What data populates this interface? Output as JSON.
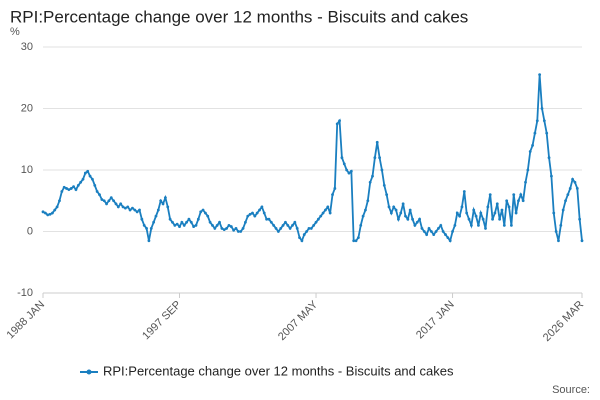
{
  "chart_data": {
    "type": "line",
    "title": "RPI:Percentage change over 12 months - Biscuits and cakes",
    "y_label": "%",
    "source": "Source:",
    "categories": [
      "1988 JAN",
      null,
      null,
      null,
      null,
      null,
      null,
      null,
      null,
      null,
      null,
      null,
      null,
      null,
      null,
      null,
      null,
      null,
      null,
      null,
      null,
      null,
      null,
      null,
      null,
      null,
      null,
      null,
      null,
      null,
      null,
      null,
      null,
      null,
      null,
      null,
      null,
      null,
      null,
      null,
      null,
      null,
      null,
      null,
      null,
      null,
      null,
      null,
      null,
      null,
      null,
      null,
      null,
      null,
      null,
      null,
      null,
      null,
      "1997 SEP",
      null,
      null,
      null,
      null,
      null,
      null,
      null,
      null,
      null,
      null,
      null,
      null,
      null,
      null,
      null,
      null,
      null,
      null,
      null,
      null,
      null,
      null,
      null,
      null,
      null,
      null,
      null,
      null,
      null,
      null,
      null,
      null,
      null,
      null,
      null,
      null,
      null,
      null,
      null,
      null,
      null,
      null,
      null,
      null,
      null,
      null,
      null,
      null,
      null,
      null,
      null,
      null,
      null,
      null,
      null,
      null,
      null,
      "2007 MAY",
      null,
      null,
      null,
      null,
      null,
      null,
      null,
      null,
      null,
      null,
      null,
      null,
      null,
      null,
      null,
      null,
      null,
      null,
      null,
      null,
      null,
      null,
      null,
      null,
      null,
      null,
      null,
      null,
      null,
      null,
      null,
      null,
      null,
      null,
      null,
      null,
      null,
      null,
      null,
      null,
      null,
      null,
      null,
      null,
      null,
      null,
      null,
      null,
      null,
      null,
      null,
      null,
      null,
      null,
      null,
      null,
      null,
      "2017 JAN",
      null,
      null,
      null,
      null,
      null,
      null,
      null,
      null,
      null,
      null,
      null,
      null,
      null,
      null,
      null,
      null,
      null,
      null,
      null,
      null,
      null,
      null,
      null,
      null,
      null,
      null,
      null,
      null,
      null,
      null,
      null,
      null,
      null,
      null,
      null,
      null,
      null,
      null,
      null,
      null,
      null,
      null,
      null,
      null,
      null,
      null,
      null,
      null,
      null,
      null,
      null,
      null,
      null,
      null,
      "2026 MAR"
    ],
    "series": [
      {
        "name": "RPI:Percentage change over 12 months - Biscuits and cakes",
        "color": "#1a7fc0",
        "values": [
          3.2,
          3,
          2.7,
          2.8,
          3,
          3.5,
          4,
          5,
          6.5,
          7.2,
          7,
          6.8,
          7,
          7.3,
          6.8,
          7.5,
          8,
          8.5,
          9.5,
          9.8,
          9,
          8.5,
          7.5,
          6.5,
          6,
          5.2,
          5,
          4.5,
          5,
          5.5,
          5,
          4.5,
          4,
          4.5,
          4,
          3.8,
          4,
          3.5,
          3.8,
          3.5,
          3.2,
          3.5,
          2,
          1,
          0.5,
          -1.5,
          0.5,
          1.5,
          2.5,
          3.5,
          5,
          4.5,
          5.5,
          4,
          2,
          1.5,
          1,
          1.2,
          0.8,
          1.5,
          1,
          1.5,
          2,
          1.5,
          0.8,
          1,
          2,
          3.2,
          3.5,
          3,
          2.5,
          1.5,
          1,
          0.5,
          1,
          1.5,
          0.5,
          0.3,
          0.5,
          1,
          0.8,
          0.2,
          0.5,
          0,
          0,
          0.5,
          1.5,
          2.5,
          2.8,
          3,
          2.5,
          3,
          3.5,
          4,
          3,
          2,
          2,
          1.5,
          1,
          0.5,
          0,
          0.5,
          1,
          1.5,
          1,
          0.5,
          1,
          1.5,
          0.5,
          -1,
          -1.5,
          -0.5,
          0,
          0.5,
          0.5,
          1,
          1.5,
          2,
          2.5,
          3,
          3.5,
          4,
          3,
          6,
          7,
          17.5,
          18,
          12,
          11,
          10,
          9.5,
          9.8,
          -1.5,
          -1.5,
          -1,
          1,
          2.5,
          3.5,
          5,
          8,
          9,
          12,
          14.5,
          12,
          10,
          7.5,
          6,
          4,
          3,
          4,
          3.5,
          2,
          3,
          4.5,
          2.5,
          2,
          3.5,
          2,
          1,
          1.5,
          2,
          0.5,
          0,
          -0.5,
          0.5,
          0,
          -0.5,
          0,
          0.5,
          1,
          0,
          -0.5,
          -1,
          -1.5,
          0,
          1,
          3,
          2.5,
          4,
          6.5,
          3,
          2,
          1,
          3.5,
          2.5,
          1,
          3,
          2,
          0.5,
          4,
          6,
          2,
          3,
          4.5,
          2,
          3.5,
          1,
          5,
          4,
          1,
          6,
          3,
          5,
          6,
          5,
          8,
          10,
          13,
          14,
          16,
          18,
          25.5,
          20,
          18,
          16,
          12,
          9,
          3,
          0,
          -1.5,
          1,
          3.5,
          5,
          6,
          7,
          8.5,
          8,
          7,
          2,
          -1.5
        ]
      }
    ],
    "ylim": [
      -10,
      30
    ],
    "yticks": [
      -10,
      0,
      10,
      20,
      30
    ],
    "grid": true,
    "legend": "bottom"
  }
}
